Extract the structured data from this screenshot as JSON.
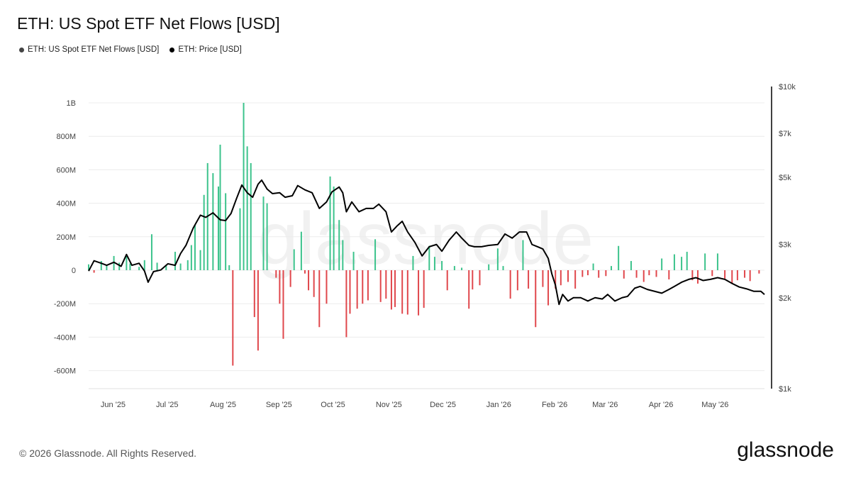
{
  "title": "ETH: US Spot ETF Net Flows [USD]",
  "watermark": "glassnode",
  "footer": "© 2026 Glassnode. All Rights Reserved.",
  "brand": "glassnode",
  "colors": {
    "inflow": "#3cc38c",
    "outflow": "#e0474c",
    "price": "#000000",
    "legend_flows": "#444444"
  },
  "legend": [
    {
      "label": "ETH: US Spot ETF Net Flows [USD]",
      "color": "#444444"
    },
    {
      "label": "ETH: Price [USD]",
      "color": "#000000"
    }
  ],
  "chart_data": {
    "type": "bar+line",
    "x_range": [
      "2025-05-20",
      "2026-05-30"
    ],
    "x_ticks": [
      {
        "label": "Jun '25",
        "date": "2025-06-01"
      },
      {
        "label": "Jul '25",
        "date": "2025-07-01"
      },
      {
        "label": "Aug '25",
        "date": "2025-08-01"
      },
      {
        "label": "Sep '25",
        "date": "2025-09-01"
      },
      {
        "label": "Oct '25",
        "date": "2025-10-01"
      },
      {
        "label": "Nov '25",
        "date": "2025-11-01"
      },
      {
        "label": "Dec '25",
        "date": "2025-12-01"
      },
      {
        "label": "Jan '26",
        "date": "2026-01-01"
      },
      {
        "label": "Feb '26",
        "date": "2026-02-01"
      },
      {
        "label": "Mar '26",
        "date": "2026-03-01"
      },
      {
        "label": "Apr '26",
        "date": "2026-04-01"
      },
      {
        "label": "May '26",
        "date": "2026-05-01"
      }
    ],
    "left_axis": {
      "range": [
        -700000000,
        1100000000
      ],
      "ticks": [
        {
          "label": "1B",
          "value": 1000000000
        },
        {
          "label": "800M",
          "value": 800000000
        },
        {
          "label": "600M",
          "value": 600000000
        },
        {
          "label": "400M",
          "value": 400000000
        },
        {
          "label": "200M",
          "value": 200000000
        },
        {
          "label": "0",
          "value": 0
        },
        {
          "label": "-200M",
          "value": -200000000
        },
        {
          "label": "-400M",
          "value": -400000000
        },
        {
          "label": "-600M",
          "value": -600000000
        }
      ]
    },
    "right_axis": {
      "scale": "log",
      "range": [
        1000,
        10000
      ],
      "ticks": [
        {
          "label": "$10k",
          "value": 10000
        },
        {
          "label": "$7k",
          "value": 7000
        },
        {
          "label": "$5k",
          "value": 5000
        },
        {
          "label": "$3k",
          "value": 3000
        },
        {
          "label": "$2k",
          "value": 2000
        },
        {
          "label": "$1k",
          "value": 1000
        }
      ]
    },
    "series": [
      {
        "name": "ETH: US Spot ETF Net Flows [USD]",
        "type": "bar",
        "points": [
          [
            "2025-05-20",
            35000000
          ],
          [
            "2025-05-23",
            -15000000
          ],
          [
            "2025-05-27",
            55000000
          ],
          [
            "2025-05-30",
            30000000
          ],
          [
            "2025-06-03",
            85000000
          ],
          [
            "2025-06-06",
            45000000
          ],
          [
            "2025-06-10",
            95000000
          ],
          [
            "2025-06-12",
            40000000
          ],
          [
            "2025-06-17",
            20000000
          ],
          [
            "2025-06-20",
            60000000
          ],
          [
            "2025-06-24",
            215000000
          ],
          [
            "2025-06-27",
            45000000
          ],
          [
            "2025-07-02",
            30000000
          ],
          [
            "2025-07-07",
            110000000
          ],
          [
            "2025-07-10",
            40000000
          ],
          [
            "2025-07-14",
            60000000
          ],
          [
            "2025-07-16",
            150000000
          ],
          [
            "2025-07-18",
            270000000
          ],
          [
            "2025-07-21",
            120000000
          ],
          [
            "2025-07-23",
            450000000
          ],
          [
            "2025-07-25",
            640000000
          ],
          [
            "2025-07-28",
            580000000
          ],
          [
            "2025-07-31",
            500000000
          ],
          [
            "2025-08-01",
            750000000
          ],
          [
            "2025-08-04",
            460000000
          ],
          [
            "2025-08-06",
            30000000
          ],
          [
            "2025-08-08",
            -570000000
          ],
          [
            "2025-08-12",
            370000000
          ],
          [
            "2025-08-14",
            1000000000
          ],
          [
            "2025-08-16",
            740000000
          ],
          [
            "2025-08-18",
            640000000
          ],
          [
            "2025-08-20",
            -280000000
          ],
          [
            "2025-08-22",
            -480000000
          ],
          [
            "2025-08-25",
            440000000
          ],
          [
            "2025-08-27",
            400000000
          ],
          [
            "2025-09-01",
            -45000000
          ],
          [
            "2025-09-03",
            -200000000
          ],
          [
            "2025-09-05",
            -410000000
          ],
          [
            "2025-09-09",
            -100000000
          ],
          [
            "2025-09-11",
            125000000
          ],
          [
            "2025-09-15",
            230000000
          ],
          [
            "2025-09-17",
            -20000000
          ],
          [
            "2025-09-19",
            -120000000
          ],
          [
            "2025-09-22",
            -160000000
          ],
          [
            "2025-09-25",
            -340000000
          ],
          [
            "2025-09-29",
            -200000000
          ],
          [
            "2025-10-01",
            560000000
          ],
          [
            "2025-10-03",
            500000000
          ],
          [
            "2025-10-06",
            300000000
          ],
          [
            "2025-10-08",
            180000000
          ],
          [
            "2025-10-10",
            -400000000
          ],
          [
            "2025-10-12",
            -260000000
          ],
          [
            "2025-10-14",
            110000000
          ],
          [
            "2025-10-16",
            -230000000
          ],
          [
            "2025-10-19",
            -200000000
          ],
          [
            "2025-10-22",
            -180000000
          ],
          [
            "2025-10-26",
            185000000
          ],
          [
            "2025-10-29",
            -190000000
          ],
          [
            "2025-11-01",
            -170000000
          ],
          [
            "2025-11-04",
            -235000000
          ],
          [
            "2025-11-06",
            -220000000
          ],
          [
            "2025-11-10",
            -260000000
          ],
          [
            "2025-11-13",
            -265000000
          ],
          [
            "2025-11-16",
            85000000
          ],
          [
            "2025-11-19",
            -270000000
          ],
          [
            "2025-11-22",
            -225000000
          ],
          [
            "2025-11-25",
            145000000
          ],
          [
            "2025-11-28",
            80000000
          ],
          [
            "2025-12-02",
            55000000
          ],
          [
            "2025-12-05",
            -120000000
          ],
          [
            "2025-12-09",
            25000000
          ],
          [
            "2025-12-13",
            15000000
          ],
          [
            "2025-12-17",
            -230000000
          ],
          [
            "2025-12-19",
            -115000000
          ],
          [
            "2025-12-23",
            -90000000
          ],
          [
            "2025-12-28",
            35000000
          ],
          [
            "2026-01-02",
            130000000
          ],
          [
            "2026-01-05",
            25000000
          ],
          [
            "2026-01-09",
            -170000000
          ],
          [
            "2026-01-13",
            -120000000
          ],
          [
            "2026-01-16",
            180000000
          ],
          [
            "2026-01-19",
            -110000000
          ],
          [
            "2026-01-23",
            -340000000
          ],
          [
            "2026-01-27",
            -100000000
          ],
          [
            "2026-01-30",
            -210000000
          ],
          [
            "2026-02-03",
            -110000000
          ],
          [
            "2026-02-06",
            -90000000
          ],
          [
            "2026-02-10",
            -70000000
          ],
          [
            "2026-02-14",
            -110000000
          ],
          [
            "2026-02-18",
            -40000000
          ],
          [
            "2026-02-21",
            -30000000
          ],
          [
            "2026-02-24",
            40000000
          ],
          [
            "2026-02-27",
            -45000000
          ],
          [
            "2026-03-03",
            -35000000
          ],
          [
            "2026-03-06",
            25000000
          ],
          [
            "2026-03-10",
            145000000
          ],
          [
            "2026-03-13",
            -50000000
          ],
          [
            "2026-03-17",
            55000000
          ],
          [
            "2026-03-20",
            -45000000
          ],
          [
            "2026-03-24",
            -70000000
          ],
          [
            "2026-03-27",
            -30000000
          ],
          [
            "2026-03-31",
            -40000000
          ],
          [
            "2026-04-03",
            70000000
          ],
          [
            "2026-04-07",
            -55000000
          ],
          [
            "2026-04-10",
            95000000
          ],
          [
            "2026-04-14",
            80000000
          ],
          [
            "2026-04-17",
            110000000
          ],
          [
            "2026-04-20",
            -60000000
          ],
          [
            "2026-04-23",
            -80000000
          ],
          [
            "2026-04-27",
            100000000
          ],
          [
            "2026-05-01",
            -35000000
          ],
          [
            "2026-05-04",
            100000000
          ],
          [
            "2026-05-08",
            -50000000
          ],
          [
            "2026-05-12",
            -80000000
          ],
          [
            "2026-05-15",
            -60000000
          ],
          [
            "2026-05-19",
            -45000000
          ],
          [
            "2026-05-22",
            -65000000
          ],
          [
            "2026-05-27",
            -20000000
          ]
        ]
      },
      {
        "name": "ETH: Price [USD]",
        "type": "line",
        "points": [
          [
            "2025-05-20",
            2450
          ],
          [
            "2025-05-23",
            2650
          ],
          [
            "2025-05-27",
            2600
          ],
          [
            "2025-05-30",
            2560
          ],
          [
            "2025-06-03",
            2620
          ],
          [
            "2025-06-07",
            2540
          ],
          [
            "2025-06-10",
            2780
          ],
          [
            "2025-06-13",
            2560
          ],
          [
            "2025-06-17",
            2600
          ],
          [
            "2025-06-20",
            2450
          ],
          [
            "2025-06-22",
            2250
          ],
          [
            "2025-06-25",
            2440
          ],
          [
            "2025-06-29",
            2470
          ],
          [
            "2025-07-03",
            2590
          ],
          [
            "2025-07-07",
            2560
          ],
          [
            "2025-07-10",
            2800
          ],
          [
            "2025-07-13",
            2980
          ],
          [
            "2025-07-17",
            3400
          ],
          [
            "2025-07-21",
            3750
          ],
          [
            "2025-07-24",
            3690
          ],
          [
            "2025-07-28",
            3820
          ],
          [
            "2025-08-01",
            3620
          ],
          [
            "2025-08-04",
            3600
          ],
          [
            "2025-08-07",
            3800
          ],
          [
            "2025-08-10",
            4250
          ],
          [
            "2025-08-13",
            4720
          ],
          [
            "2025-08-16",
            4450
          ],
          [
            "2025-08-19",
            4300
          ],
          [
            "2025-08-22",
            4750
          ],
          [
            "2025-08-24",
            4900
          ],
          [
            "2025-08-27",
            4580
          ],
          [
            "2025-08-30",
            4420
          ],
          [
            "2025-09-03",
            4450
          ],
          [
            "2025-09-06",
            4300
          ],
          [
            "2025-09-10",
            4350
          ],
          [
            "2025-09-13",
            4700
          ],
          [
            "2025-09-17",
            4550
          ],
          [
            "2025-09-21",
            4450
          ],
          [
            "2025-09-25",
            3950
          ],
          [
            "2025-09-29",
            4150
          ],
          [
            "2025-10-02",
            4480
          ],
          [
            "2025-10-06",
            4650
          ],
          [
            "2025-10-08",
            4450
          ],
          [
            "2025-10-10",
            3850
          ],
          [
            "2025-10-13",
            4150
          ],
          [
            "2025-10-17",
            3850
          ],
          [
            "2025-10-21",
            3950
          ],
          [
            "2025-10-25",
            3950
          ],
          [
            "2025-10-28",
            4080
          ],
          [
            "2025-11-01",
            3850
          ],
          [
            "2025-11-04",
            3300
          ],
          [
            "2025-11-07",
            3450
          ],
          [
            "2025-11-10",
            3580
          ],
          [
            "2025-11-13",
            3300
          ],
          [
            "2025-11-17",
            3050
          ],
          [
            "2025-11-21",
            2750
          ],
          [
            "2025-11-25",
            2950
          ],
          [
            "2025-11-29",
            3000
          ],
          [
            "2025-12-02",
            2850
          ],
          [
            "2025-12-06",
            3100
          ],
          [
            "2025-12-10",
            3300
          ],
          [
            "2025-12-13",
            3150
          ],
          [
            "2025-12-17",
            2980
          ],
          [
            "2025-12-20",
            2950
          ],
          [
            "2025-12-24",
            2950
          ],
          [
            "2025-12-28",
            2980
          ],
          [
            "2026-01-02",
            3000
          ],
          [
            "2026-01-06",
            3250
          ],
          [
            "2026-01-10",
            3150
          ],
          [
            "2026-01-14",
            3300
          ],
          [
            "2026-01-18",
            3300
          ],
          [
            "2026-01-21",
            3000
          ],
          [
            "2026-01-24",
            2950
          ],
          [
            "2026-01-27",
            2900
          ],
          [
            "2026-01-30",
            2700
          ],
          [
            "2026-02-01",
            2400
          ],
          [
            "2026-02-03",
            2200
          ],
          [
            "2026-02-05",
            1900
          ],
          [
            "2026-02-07",
            2050
          ],
          [
            "2026-02-10",
            1950
          ],
          [
            "2026-02-13",
            2000
          ],
          [
            "2026-02-17",
            2000
          ],
          [
            "2026-02-21",
            1950
          ],
          [
            "2026-02-25",
            2000
          ],
          [
            "2026-03-01",
            1980
          ],
          [
            "2026-03-04",
            2050
          ],
          [
            "2026-03-08",
            1950
          ],
          [
            "2026-03-12",
            2000
          ],
          [
            "2026-03-15",
            2020
          ],
          [
            "2026-03-19",
            2150
          ],
          [
            "2026-03-22",
            2180
          ],
          [
            "2026-03-26",
            2130
          ],
          [
            "2026-03-30",
            2100
          ],
          [
            "2026-04-03",
            2070
          ],
          [
            "2026-04-07",
            2130
          ],
          [
            "2026-04-10",
            2180
          ],
          [
            "2026-04-14",
            2250
          ],
          [
            "2026-04-18",
            2300
          ],
          [
            "2026-04-22",
            2330
          ],
          [
            "2026-04-26",
            2280
          ],
          [
            "2026-04-30",
            2300
          ],
          [
            "2026-05-04",
            2330
          ],
          [
            "2026-05-08",
            2300
          ],
          [
            "2026-05-12",
            2230
          ],
          [
            "2026-05-16",
            2170
          ],
          [
            "2026-05-20",
            2140
          ],
          [
            "2026-05-24",
            2100
          ],
          [
            "2026-05-28",
            2100
          ],
          [
            "2026-05-30",
            2050
          ]
        ]
      }
    ]
  }
}
